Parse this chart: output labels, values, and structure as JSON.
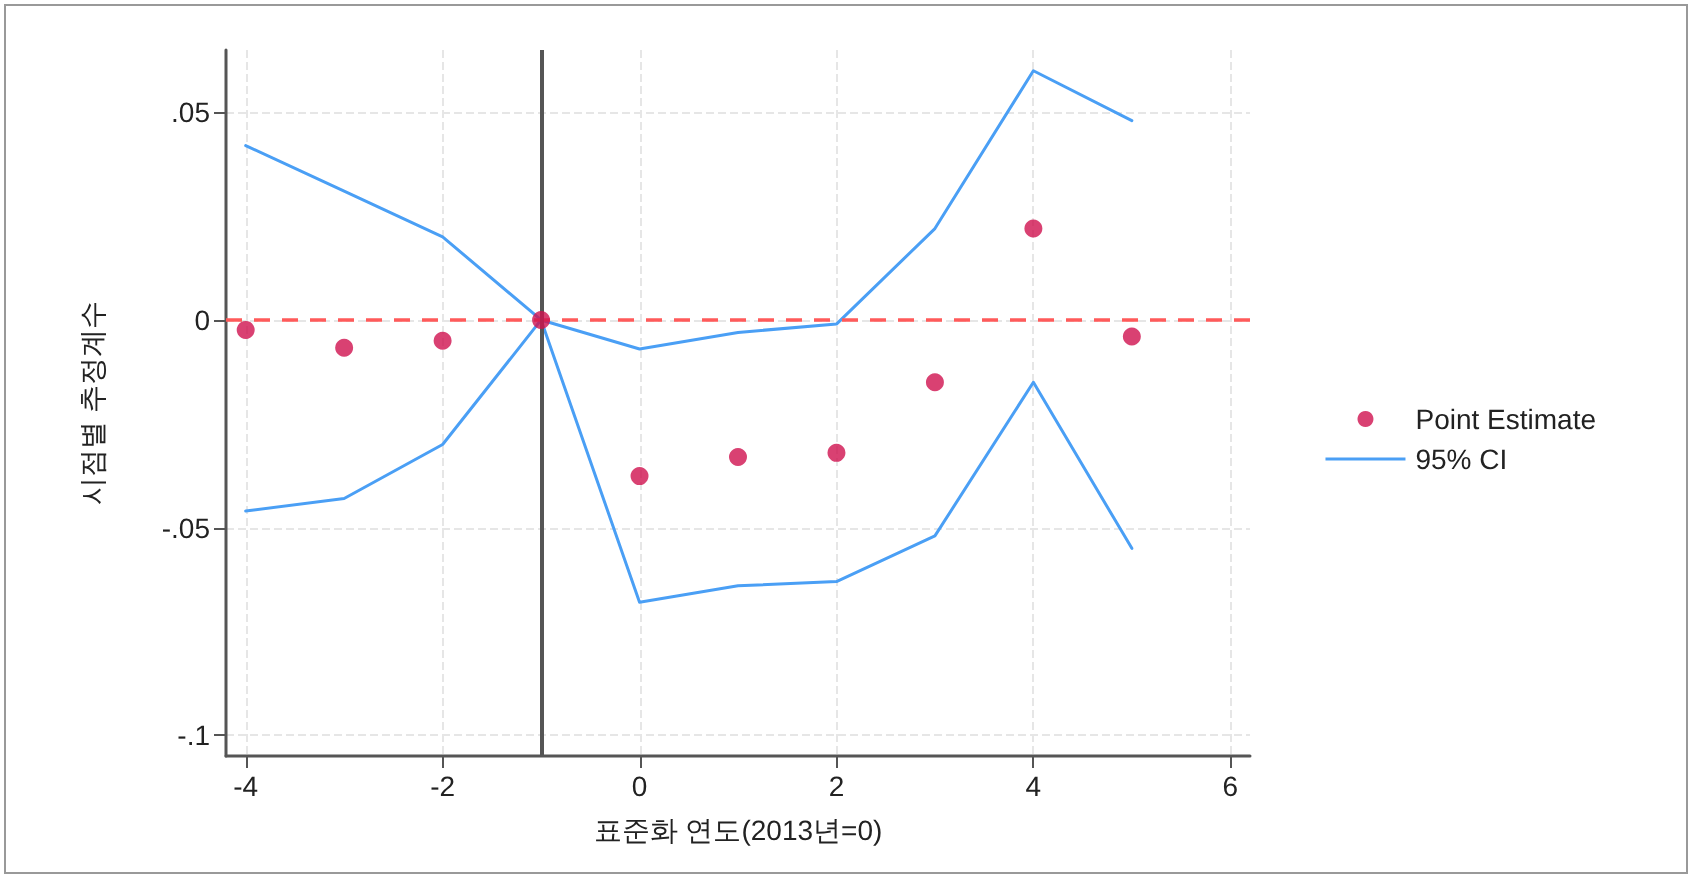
{
  "chart_data": {
    "type": "scatter",
    "xlabel": "표준화 연도(2013년=0)",
    "ylabel": "시점별 추정계수",
    "x": [
      -4,
      -3,
      -2,
      -1,
      0,
      1,
      2,
      3,
      4,
      5
    ],
    "series": [
      {
        "name": "Point Estimate",
        "color": "#d0114f",
        "marker": "circle",
        "values": [
          -0.0024,
          -0.0067,
          -0.005,
          0,
          -0.0376,
          -0.033,
          -0.032,
          -0.015,
          0.022,
          -0.004
        ]
      },
      {
        "name": "95% CI",
        "type": "line",
        "color": "#4a9ff5",
        "marker": "none",
        "line_style": "solid",
        "values": [
          0.042,
          0.031,
          0.02,
          0,
          -0.007,
          -0.003,
          -0.001,
          0.022,
          0.06,
          0.048
        ]
      },
      {
        "type": "line",
        "color": "#4a9ff5",
        "marker": "none",
        "line_style": "solid",
        "values": [
          -0.046,
          -0.043,
          -0.03,
          0,
          -0.068,
          -0.064,
          -0.063,
          -0.052,
          -0.015,
          -0.055
        ]
      }
    ],
    "xlim": [
      -4.2,
      6.2
    ],
    "xticks": [
      -4,
      -2,
      0,
      2,
      4,
      6
    ],
    "ylim": [
      -0.105,
      0.065
    ],
    "yticks": [
      {
        "value": -0.1,
        "label": "-.1"
      },
      {
        "value": -0.05,
        "label": "-.05"
      },
      {
        "value": 0,
        "label": "0"
      },
      {
        "value": 0.05,
        "label": ".05"
      }
    ],
    "ref_lines": [
      {
        "axis": "y",
        "value": 0,
        "color": "#ff5a5a",
        "line_style": "dashed"
      },
      {
        "axis": "x",
        "value": -1,
        "color": "#555555",
        "line_style": "solid"
      }
    ],
    "grid": true,
    "legend": "right"
  }
}
